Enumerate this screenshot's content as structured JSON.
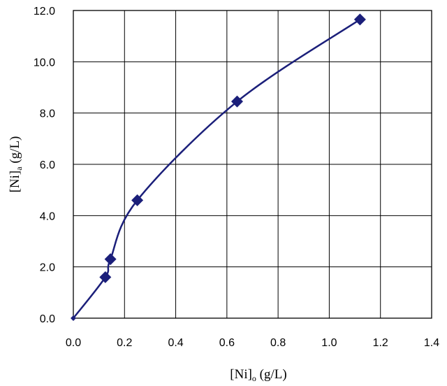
{
  "chart_data": {
    "type": "scatter",
    "title": "",
    "xlabel_main": "[Ni]",
    "xlabel_sub": "o",
    "xlabel_unit": " (g/L)",
    "ylabel_main": "[Ni]",
    "ylabel_sub": "a",
    "ylabel_unit": " (g/L)",
    "xlim": [
      0,
      1.4
    ],
    "ylim": [
      0,
      12
    ],
    "x_ticks": [
      "0.0",
      "0.2",
      "0.4",
      "0.6",
      "0.8",
      "1.0",
      "1.2",
      "1.4"
    ],
    "y_ticks": [
      "0.0",
      "2.0",
      "4.0",
      "6.0",
      "8.0",
      "10.0",
      "12.0"
    ],
    "grid": true,
    "legend": "none",
    "series": [
      {
        "marker": "diamond",
        "line": "smooth",
        "color": "#1b1f7a",
        "x": [
          0.0,
          0.125,
          0.145,
          0.25,
          0.64,
          1.12
        ],
        "y": [
          0.0,
          1.6,
          2.3,
          4.6,
          8.45,
          11.65
        ]
      }
    ]
  }
}
